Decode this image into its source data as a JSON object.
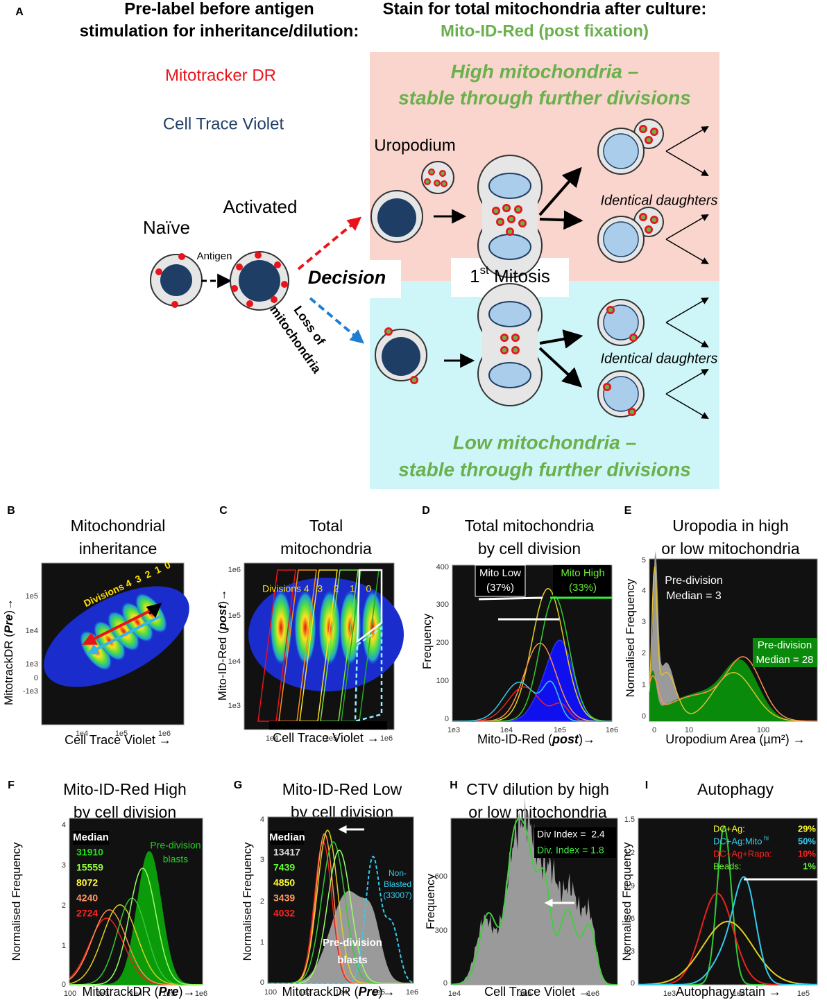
{
  "panel_a": {
    "label": "A",
    "left_heading": [
      "Pre-label before antigen",
      "stimulation for inheritance/dilution:"
    ],
    "right_heading": "Stain for total mitochondria after culture:",
    "right_stain": "Mito-ID-Red (post fixation)",
    "pre_label_1": "Mitotracker DR",
    "pre_label_2": "Cell Trace Violet",
    "high_title": [
      "High mitochondria –",
      "stable through further divisions"
    ],
    "low_title": [
      "Low mitochondria –",
      "stable through further divisions"
    ],
    "uropodium": "Uropodium",
    "activated": "Activated",
    "naive": "Naïve",
    "antigen": "Antigen",
    "decision": "Decision",
    "mitosis": [
      "1",
      "st",
      " Mitosis"
    ],
    "loss": [
      "Loss of",
      "mitochondria"
    ],
    "daughters_high": "Identical daughters",
    "daughters_low": "Identical daughters"
  },
  "panels": [
    {
      "label": "B",
      "title": [
        "Mitochondrial",
        "inheritance"
      ],
      "x_label": [
        "Cell Trace Violet →"
      ],
      "y_label": [
        "MitotrackDR (",
        "Pre",
        ")→"
      ],
      "x_ticks": [
        "1e4",
        "1e5",
        "1e6"
      ],
      "y_ticks": [
        "1e5",
        "1e4",
        "1e3",
        "0",
        "-1e3"
      ],
      "annotations": [
        {
          "text": "Divisions 4  3  2  1  0",
          "color": "#ffe000"
        }
      ]
    },
    {
      "label": "C",
      "title": [
        "Total",
        "mitochondria"
      ],
      "x_label": [
        "Cell Trace Violet →"
      ],
      "y_label": [
        "Mito-ID-Red (",
        "post",
        ")→"
      ],
      "x_ticks": [
        "1e4",
        "1e5",
        "1e6"
      ],
      "y_ticks": [
        "1e6",
        "1e5",
        "1e4",
        "1e3"
      ],
      "annotations": [
        {
          "text": "Divisions 4   3    2    1    0",
          "color": "#ffe000"
        }
      ]
    },
    {
      "label": "D",
      "title": [
        "Total mitochondria",
        "by cell division"
      ],
      "x_label": [
        "Mito-ID-Red (",
        "post",
        ")→"
      ],
      "y_label": [
        "Frequency"
      ],
      "x_ticks": [
        "1e3",
        "1e4",
        "1e5",
        "1e6"
      ],
      "y_ticks": [
        "400",
        "300",
        "200",
        "100",
        "0"
      ],
      "annotations": [
        {
          "text": "Mito Low",
          "color": "#ffffff"
        },
        {
          "text": "(37%)",
          "color": "#ffffff"
        },
        {
          "text": "Mito High",
          "color": "#66ee33"
        },
        {
          "text": "(33%)",
          "color": "#66ee33"
        }
      ]
    },
    {
      "label": "E",
      "title": [
        "Uropodia in high",
        "or low mitochondria"
      ],
      "x_label": [
        "Uropodium Area (µm²) →"
      ],
      "y_label": [
        "Normalised Frequency"
      ],
      "x_ticks": [
        "0",
        "10",
        "100"
      ],
      "y_ticks": [
        "5",
        "4",
        "3",
        "2",
        "1",
        "0"
      ],
      "annotations": [
        {
          "text": "Pre-division",
          "color": "#ffffff"
        },
        {
          "text": "Median = 3",
          "color": "#ffffff"
        },
        {
          "text": "Pre-division",
          "color": "#ffffff"
        },
        {
          "text": "Median = 28",
          "color": "#ffffff"
        }
      ]
    },
    {
      "label": "F",
      "title": [
        "Mito-ID-Red High",
        "by cell division"
      ],
      "x_label": [
        "MitotrackDR (",
        "Pre",
        ")→"
      ],
      "y_label": [
        "Normalised Frequency"
      ],
      "x_ticks": [
        "100",
        "1e3",
        "1e4",
        "1e5",
        "1e6"
      ],
      "y_ticks": [
        "4",
        "3",
        "2",
        "1",
        "0"
      ],
      "annotations": [
        {
          "text": "Median",
          "color": "#ffffff"
        },
        {
          "text": "31910",
          "color": "#22dd22"
        },
        {
          "text": "15559",
          "color": "#99ff44"
        },
        {
          "text": "8072",
          "color": "#ffff33"
        },
        {
          "text": "4240",
          "color": "#ff9966"
        },
        {
          "text": "2724",
          "color": "#ff2222"
        },
        {
          "text": "Pre-division",
          "color": "#22cc22"
        },
        {
          "text": "blasts",
          "color": "#22cc22"
        }
      ]
    },
    {
      "label": "G",
      "title": [
        "Mito-ID-Red Low",
        "by cell division"
      ],
      "x_label": [
        "MitotrackDR (",
        "Pre",
        ")→"
      ],
      "y_label": [
        "Normalised Frequency"
      ],
      "x_ticks": [
        "100",
        "1e3",
        "1e4",
        "1e5",
        "1e6"
      ],
      "y_ticks": [
        "4",
        "3",
        "2",
        "1",
        "0"
      ],
      "annotations": [
        {
          "text": "Median",
          "color": "#ffffff"
        },
        {
          "text": "13417",
          "color": "#dddddd"
        },
        {
          "text": "7439",
          "color": "#66ff33"
        },
        {
          "text": "4850",
          "color": "#ffff33"
        },
        {
          "text": "3439",
          "color": "#ff9966"
        },
        {
          "text": "4032",
          "color": "#ff2222"
        },
        {
          "text": "Non-",
          "color": "#33ccee"
        },
        {
          "text": "Blasted",
          "color": "#33ccee"
        },
        {
          "text": "(33007)",
          "color": "#33ccee"
        },
        {
          "text": "Pre-division",
          "color": "#ffffff"
        },
        {
          "text": "blasts",
          "color": "#ffffff"
        }
      ]
    },
    {
      "label": "H",
      "title": [
        "CTV dilution by high",
        "or low mitochondria"
      ],
      "x_label": [
        "Cell Trace Violet →"
      ],
      "y_label": [
        "Frequency"
      ],
      "x_ticks": [
        "1e4",
        "1e5",
        "1e6"
      ],
      "y_ticks": [
        "600",
        "300",
        "0"
      ],
      "annotations": [
        {
          "text": "Div Index =  2.4",
          "color": "#ffffff"
        },
        {
          "text": "Div. Index = 1.8",
          "color": "#44ee44"
        }
      ]
    },
    {
      "label": "I",
      "title": [
        "Autophagy"
      ],
      "x_label": [
        "Autophagy stain →"
      ],
      "y_label": [
        "Normalised Frequency"
      ],
      "x_ticks": [
        "1e3",
        "1e4",
        "1e5"
      ],
      "y_ticks": [
        "1.5",
        "1.2",
        "0.9",
        "0.6",
        "0.3",
        "0"
      ],
      "annotations": [
        {
          "text": "DC+Ag:",
          "color": "#ffff33"
        },
        {
          "text": "29%",
          "color": "#ffff33"
        },
        {
          "text": "DC+Ag:Mito",
          "color": "#33ccee"
        },
        {
          "text": "hi",
          "color": "#33ccee"
        },
        {
          "text": "50%",
          "color": "#33ccee"
        },
        {
          "text": "DC+Ag+Rapa:",
          "color": "#ff2222"
        },
        {
          "text": "10%",
          "color": "#ff2222"
        },
        {
          "text": "Beads:",
          "color": "#66ee33"
        },
        {
          "text": "1%",
          "color": "#66ee33"
        }
      ]
    }
  ]
}
